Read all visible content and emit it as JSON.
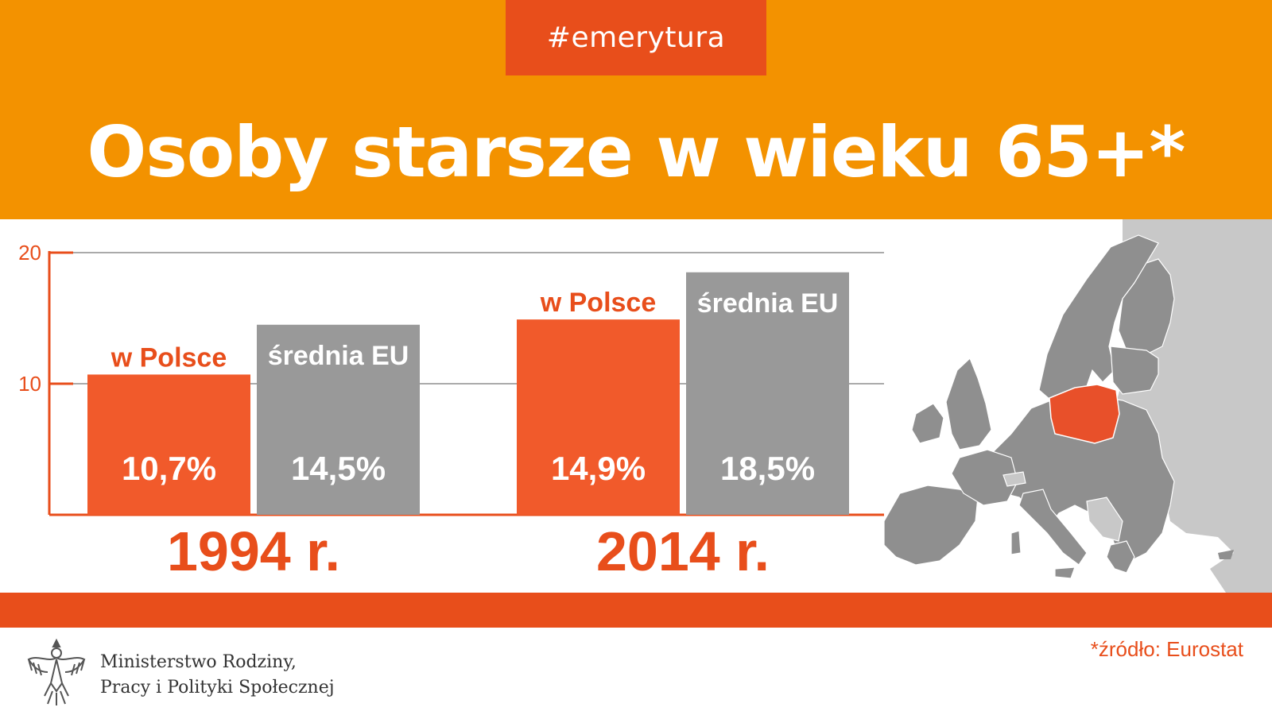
{
  "tag": "#emerytura",
  "headline": "Osoby starsze w wieku 65+*",
  "colors": {
    "top_band": "#f39200",
    "accent": "#e84e1b",
    "poland_bar": "#f15a2b",
    "eu_bar": "#999999",
    "map_country": "#8f8f8f",
    "map_non_eu": "#c8c8c8",
    "map_poland": "#e8502a"
  },
  "chart_data": {
    "type": "bar",
    "categories": [
      "1994 r.",
      "2014 r."
    ],
    "series": [
      {
        "name": "w Polsce",
        "values": [
          10.7,
          14.9
        ],
        "labels": [
          "10,7%",
          "14,9%"
        ]
      },
      {
        "name": "średnia EU",
        "values": [
          14.5,
          18.5
        ],
        "labels": [
          "14,5%",
          "18,5%"
        ]
      }
    ],
    "ylim": [
      0,
      20
    ],
    "yticks": [
      10,
      20
    ],
    "grid": true,
    "xlabel": "",
    "ylabel": ""
  },
  "map": {
    "highlighted_country": "Poland"
  },
  "footer": {
    "ministry_line1": "Ministerstwo Rodziny,",
    "ministry_line2": "Pracy i Polityki Społecznej",
    "source": "*źródło: Eurostat",
    "emblem_icon": "polish-eagle-icon"
  }
}
